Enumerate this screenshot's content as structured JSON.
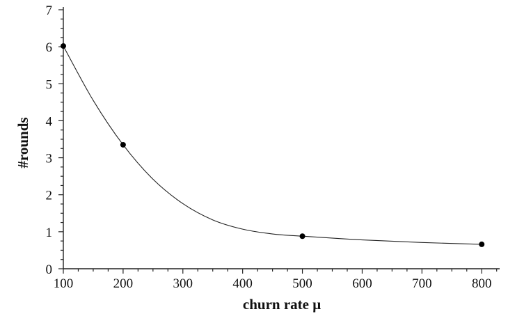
{
  "chart_data": {
    "type": "line",
    "title": "",
    "xlabel": "churn rate μ",
    "ylabel": "#rounds",
    "xlim": [
      100,
      830
    ],
    "ylim": [
      0,
      7
    ],
    "xticks": [
      100,
      200,
      300,
      400,
      500,
      600,
      700,
      800
    ],
    "yticks": [
      0,
      1,
      2,
      3,
      4,
      5,
      6,
      7
    ],
    "xtick_labels": [
      "100",
      "200",
      "300",
      "400",
      "500",
      "600",
      "700",
      "800"
    ],
    "ytick_labels": [
      "0",
      "1",
      "2",
      "3",
      "4",
      "5",
      "6",
      "7"
    ],
    "grid": false,
    "series": [
      {
        "markers": [
          {
            "x": 100,
            "y": 6.02
          },
          {
            "x": 200,
            "y": 3.35
          },
          {
            "x": 500,
            "y": 0.88
          },
          {
            "x": 800,
            "y": 0.66
          }
        ],
        "curve": [
          {
            "x": 100,
            "y": 6.02
          },
          {
            "x": 150,
            "y": 4.55
          },
          {
            "x": 200,
            "y": 3.35
          },
          {
            "x": 250,
            "y": 2.42
          },
          {
            "x": 300,
            "y": 1.76
          },
          {
            "x": 350,
            "y": 1.32
          },
          {
            "x": 400,
            "y": 1.07
          },
          {
            "x": 450,
            "y": 0.94
          },
          {
            "x": 500,
            "y": 0.88
          },
          {
            "x": 600,
            "y": 0.78
          },
          {
            "x": 700,
            "y": 0.71
          },
          {
            "x": 800,
            "y": 0.66
          }
        ],
        "color": "#000000"
      }
    ]
  }
}
